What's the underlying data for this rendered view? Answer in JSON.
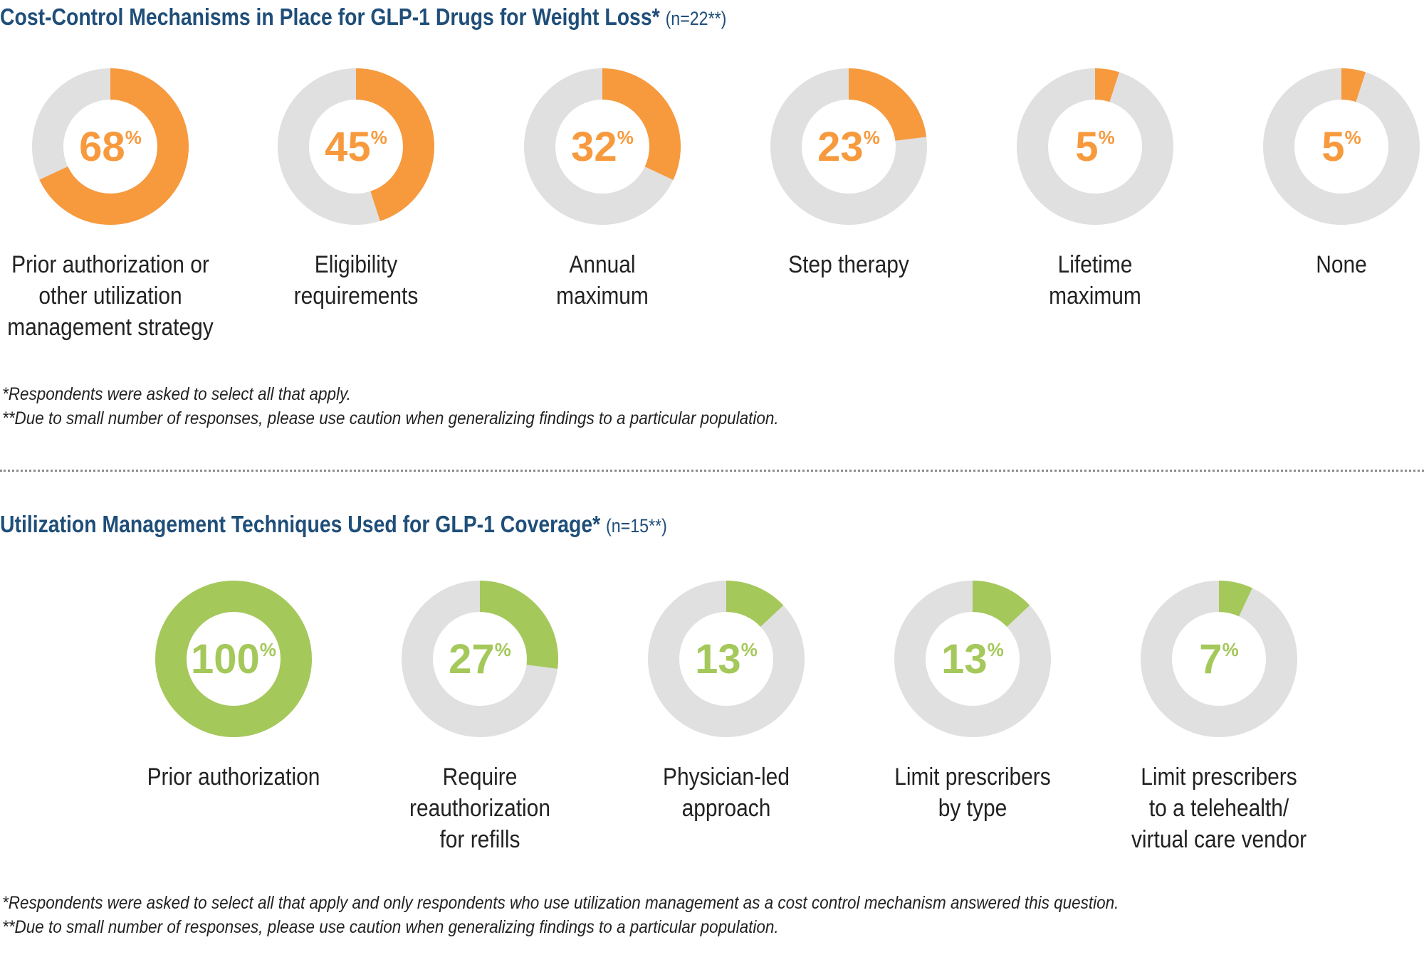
{
  "colors": {
    "orange": "#f79a3e",
    "green": "#a5c85b",
    "track": "#e0e0e0",
    "title": "#1f4e79"
  },
  "section1": {
    "title": "Cost-Control Mechanisms in Place for GLP-1 Drugs for Weight Loss*",
    "n_note": "(n=22**)",
    "footnotes": [
      "*Respondents were asked to select all that apply.",
      "**Due to small number of responses, please use caution when generalizing findings to a particular population."
    ]
  },
  "section2": {
    "title": "Utilization Management Techniques Used for GLP-1 Coverage*",
    "n_note": "(n=15**)",
    "footnotes": [
      "*Respondents were asked to select all that apply and only respondents who use utilization management as a cost control mechanism answered this question.",
      "**Due to small number of responses, please use caution when generalizing findings to a particular population."
    ]
  },
  "chart_data": [
    {
      "type": "pie",
      "title": "Cost-Control Mechanisms in Place for GLP-1 Drugs for Weight Loss*",
      "unit": "%",
      "color": "#f79a3e",
      "categories": [
        [
          "Prior authorization or",
          "other utilization",
          "management strategy"
        ],
        [
          "Eligibility",
          "requirements"
        ],
        [
          "Annual",
          "maximum"
        ],
        [
          "Step therapy"
        ],
        [
          "Lifetime",
          "maximum"
        ],
        [
          "None"
        ]
      ],
      "values": [
        68,
        45,
        32,
        23,
        5,
        5
      ]
    },
    {
      "type": "pie",
      "title": "Utilization Management Techniques Used for GLP-1 Coverage*",
      "unit": "%",
      "color": "#a5c85b",
      "categories": [
        [
          "Prior authorization"
        ],
        [
          "Require",
          "reauthorization",
          "for refills"
        ],
        [
          "Physician-led",
          "approach"
        ],
        [
          "Limit prescribers",
          "by type"
        ],
        [
          "Limit prescribers",
          "to a telehealth/",
          "virtual care vendor"
        ]
      ],
      "values": [
        100,
        27,
        13,
        13,
        7
      ]
    }
  ]
}
